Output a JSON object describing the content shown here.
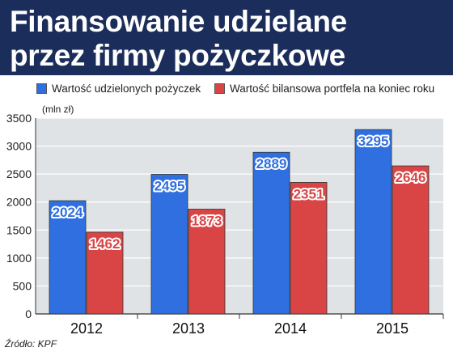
{
  "header": {
    "title_line1": "Finansowanie udzielane",
    "title_line2": "przez firmy pożyczkowe"
  },
  "unit_label": "(mln zł)",
  "source": "Źródło: KPF",
  "colors": {
    "title_bg": "#1b2d5a",
    "series_blue": "#2f6fe0",
    "series_red": "#d94545",
    "plot_bg": "#dfe3e6"
  },
  "chart_data": {
    "type": "bar",
    "categories": [
      "2012",
      "2013",
      "2014",
      "2015"
    ],
    "series": [
      {
        "name": "Wartość udzielonych pożyczek",
        "values": [
          2024,
          2495,
          2889,
          3295
        ],
        "color": "#2f6fe0"
      },
      {
        "name": "Wartość bilansowa portfela na koniec roku",
        "values": [
          1462,
          1873,
          2351,
          2646
        ],
        "color": "#d94545"
      }
    ],
    "ylim": [
      0,
      3500
    ],
    "yticks": [
      0,
      500,
      1000,
      1500,
      2000,
      2500,
      3000,
      3500
    ],
    "grid": true,
    "legend": "top"
  }
}
